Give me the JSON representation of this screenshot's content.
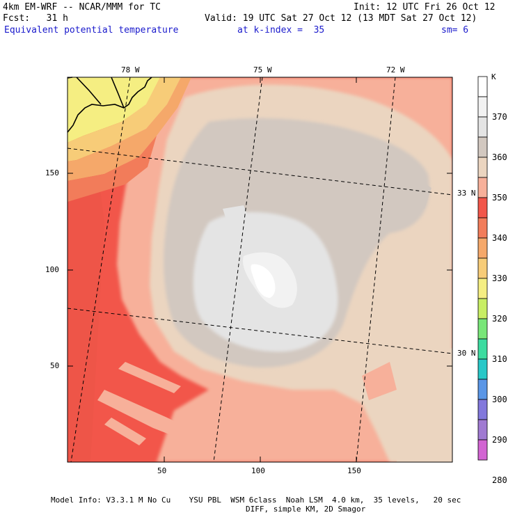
{
  "header": {
    "model_line": "4km EM-WRF -- NCAR/MMM for TC",
    "forecast_line": "Fcst:   31 h",
    "init": "Init: 12 UTC Fri 26 Oct 12",
    "valid": "Valid: 19 UTC Sat 27 Oct 12 (13 MDT Sat 27 Oct 12)",
    "field": "Equivalent potential temperature",
    "level": "at k-index =  35",
    "smoothing": "sm= 6"
  },
  "axes": {
    "x_ticks": [
      "50",
      "100",
      "150"
    ],
    "y_ticks": [
      "150",
      "100",
      "50"
    ],
    "lon_labels": [
      "78 W",
      "75 W",
      "72 W"
    ],
    "lat_labels": [
      "33 N",
      "30 N"
    ]
  },
  "colorbar": {
    "unit": "K",
    "labels": [
      "370",
      "360",
      "350",
      "340",
      "330",
      "320",
      "310",
      "300",
      "290",
      "280"
    ],
    "colors": [
      "#ffffff",
      "#f2f2f2",
      "#e4e4e4",
      "#d2c8c0",
      "#ebd5c0",
      "#f7b09a",
      "#f2564a",
      "#f27c5a",
      "#f5a86a",
      "#f7cc78",
      "#f5ee82",
      "#c8ee64",
      "#78e678",
      "#3cdca0",
      "#28c8c8",
      "#5a96e6",
      "#8278dc",
      "#a07ad2",
      "#d264d2"
    ]
  },
  "footer": {
    "line1": "Model Info: V3.3.1 M No Cu    YSU PBL  WSM 6class  Noah LSM  4.0 km,  35 levels,   20 sec",
    "line2": "DIFF, simple KM, 2D Smagor"
  }
}
